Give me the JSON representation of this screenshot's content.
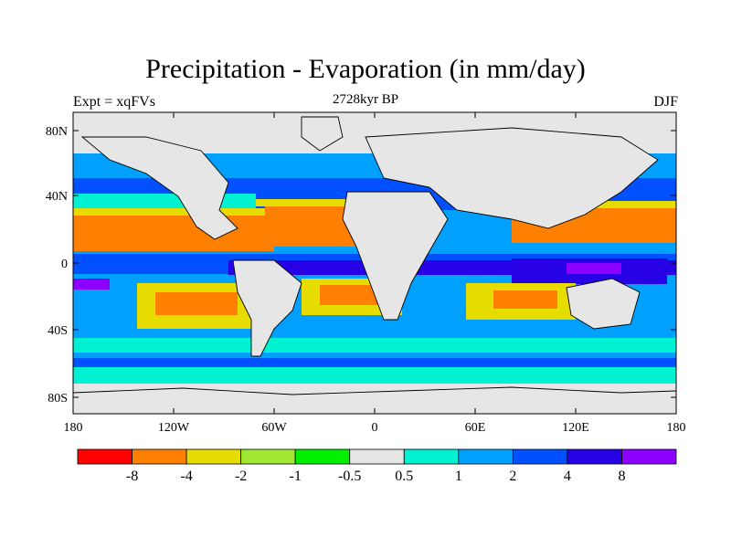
{
  "title": "Precipitation - Evaporation (in mm/day)",
  "subtitle_left": "Expt = xqFVs",
  "subtitle_center": "2728kyr BP",
  "subtitle_right": "DJF",
  "lat_labels": [
    "80N",
    "40N",
    "0",
    "40S",
    "80S"
  ],
  "lon_labels": [
    "180",
    "120W",
    "60W",
    "0",
    "60E",
    "120E",
    "180"
  ],
  "colorbar": {
    "colors": [
      "#ff0000",
      "#ff8000",
      "#e6dc00",
      "#a0e632",
      "#00f000",
      "#e6e6e6",
      "#00f0d2",
      "#00a0ff",
      "#0050ff",
      "#2800e6",
      "#8c00ff"
    ],
    "labels": [
      "-8",
      "-4",
      "-2",
      "-1",
      "-0.5",
      "0.5",
      "1",
      "2",
      "4",
      "8"
    ]
  },
  "land_color": "#e6e6e6"
}
